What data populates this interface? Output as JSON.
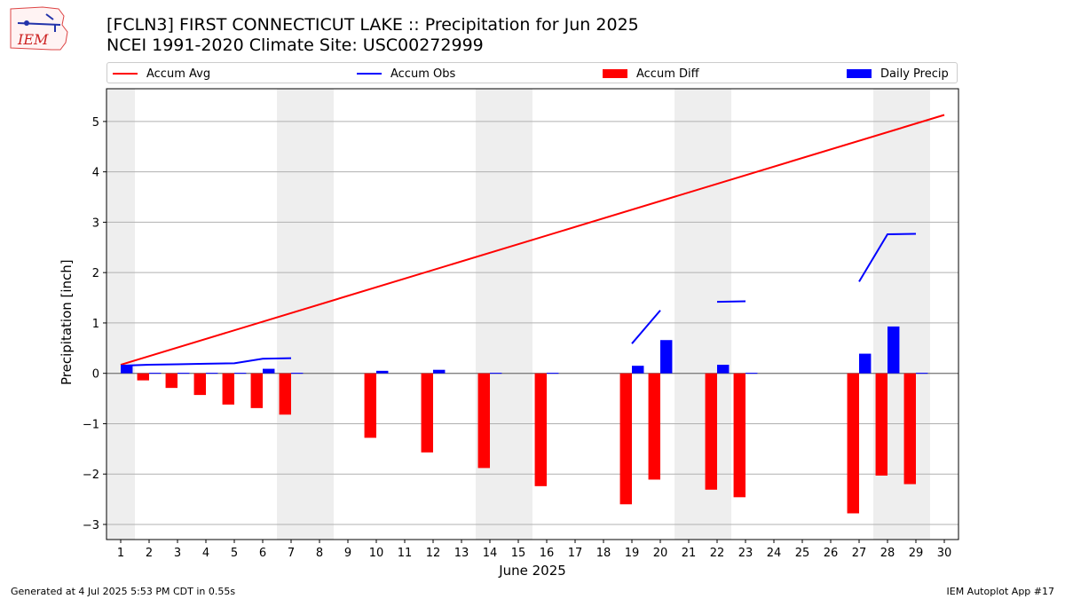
{
  "logo": {
    "text": "IEM"
  },
  "title": {
    "line1": "[FCLN3] FIRST CONNECTICUT LAKE :: Precipitation for Jun 2025",
    "line2": "NCEI 1991-2020 Climate Site: USC00272999"
  },
  "legend": {
    "accum_avg": "Accum Avg",
    "accum_obs": "Accum Obs",
    "accum_diff": "Accum Diff",
    "daily_precip": "Daily Precip"
  },
  "footer": {
    "left": "Generated at 4 Jul 2025 5:53 PM CDT in 0.55s",
    "right": "IEM Autoplot App #17"
  },
  "colors": {
    "accum_avg": "#ff0000",
    "accum_obs": "#0000ff",
    "accum_diff": "#ff0000",
    "daily_precip": "#0000ff",
    "weekend_shade": "#eeeeee",
    "grid": "#b0b0b0"
  },
  "chart_data": {
    "type": "bar",
    "xlabel": "June 2025",
    "ylabel": "Precipitation [inch]",
    "xlim": [
      0.5,
      30.5
    ],
    "ylim": [
      -3.3,
      5.65
    ],
    "xticks": [
      1,
      2,
      3,
      4,
      5,
      6,
      7,
      8,
      9,
      10,
      11,
      12,
      13,
      14,
      15,
      16,
      17,
      18,
      19,
      20,
      21,
      22,
      23,
      24,
      25,
      26,
      27,
      28,
      29,
      30
    ],
    "yticks": [
      -3,
      -2,
      -1,
      0,
      1,
      2,
      3,
      4,
      5
    ],
    "ytick_labels": [
      "−3",
      "−2",
      "−1",
      "0",
      "1",
      "2",
      "3",
      "4",
      "5"
    ],
    "grid": "horizontal",
    "legend_position": "top",
    "weekend_shading": [
      [
        0.5,
        1.5
      ],
      [
        6.5,
        8.5
      ],
      [
        13.5,
        15.5
      ],
      [
        20.5,
        22.5
      ],
      [
        27.5,
        29.5
      ]
    ],
    "accum_avg": {
      "name": "Accum Avg",
      "x": [
        1,
        30
      ],
      "y": [
        0.17,
        5.13
      ]
    },
    "accum_obs": {
      "name": "Accum Obs",
      "segments": [
        {
          "x": [
            1,
            2,
            3,
            4,
            5,
            6,
            7
          ],
          "y": [
            0.15,
            0.17,
            0.18,
            0.19,
            0.2,
            0.29,
            0.3
          ]
        },
        {
          "x": [
            19,
            20
          ],
          "y": [
            0.59,
            1.25
          ]
        },
        {
          "x": [
            22,
            23
          ],
          "y": [
            1.42,
            1.43
          ]
        },
        {
          "x": [
            27,
            28,
            29
          ],
          "y": [
            1.82,
            2.76,
            2.77
          ]
        }
      ]
    },
    "accum_diff": {
      "name": "Accum Diff",
      "x": [
        2,
        3,
        4,
        5,
        6,
        7,
        10,
        12,
        14,
        16,
        19,
        20,
        22,
        23,
        27,
        28,
        29
      ],
      "y": [
        -0.14,
        -0.29,
        -0.43,
        -0.62,
        -0.69,
        -0.82,
        -1.28,
        -1.57,
        -1.88,
        -2.24,
        -2.6,
        -2.11,
        -2.31,
        -2.46,
        -2.78,
        -2.03,
        -2.2
      ]
    },
    "daily_precip": {
      "name": "Daily Precip",
      "x": [
        1,
        2,
        3,
        4,
        5,
        6,
        7,
        10,
        12,
        14,
        16,
        19,
        20,
        22,
        23,
        27,
        28,
        29
      ],
      "y": [
        0.15,
        0.01,
        0.01,
        0.01,
        0.01,
        0.09,
        0.01,
        0.05,
        0.07,
        0.01,
        0.01,
        0.15,
        0.66,
        0.17,
        0.01,
        0.39,
        0.93,
        0.01
      ]
    }
  }
}
